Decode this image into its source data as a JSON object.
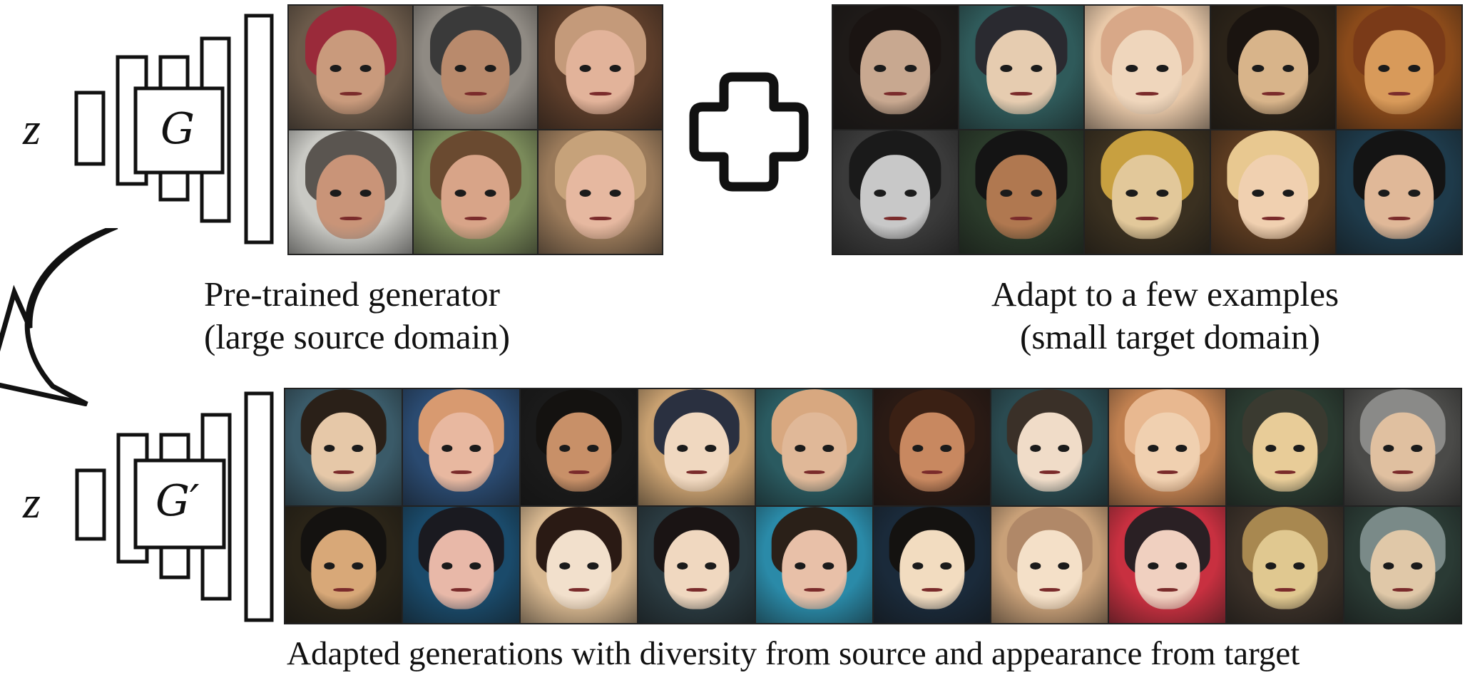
{
  "figure": {
    "source_generator": {
      "z_label": "z",
      "g_label": "G"
    },
    "adapted_generator": {
      "z_label": "z",
      "g_label": "G′"
    },
    "plus_icon": "plus-icon",
    "arrow_icon": "curved-arrow-icon",
    "captions": {
      "pretrained_line1": "Pre-trained generator",
      "pretrained_line2": "(large source domain)",
      "adapt_line1": "Adapt to a few examples",
      "adapt_line2": "(small target domain)",
      "adapted": "Adapted generations with diversity from source and appearance from target"
    }
  },
  "source_faces": [
    {
      "bg": "#6b5a4a",
      "skin": "#c99a7c",
      "hair": "#9a2a3a"
    },
    {
      "bg": "#8f8a83",
      "skin": "#b98a6c",
      "hair": "#3a3a3a"
    },
    {
      "bg": "#5c3d2a",
      "skin": "#e2b39a",
      "hair": "#c49a7a"
    },
    {
      "bg": "#c9c9c4",
      "skin": "#c99478",
      "hair": "#5a5550"
    },
    {
      "bg": "#7a8a5a",
      "skin": "#d8a488",
      "hair": "#6a4a30"
    },
    {
      "bg": "#9a7a5a",
      "skin": "#e6b8a0",
      "hair": "#c6a27a"
    }
  ],
  "target_faces": [
    {
      "bg": "#1e1a18",
      "skin": "#c8a890",
      "hair": "#1a1412"
    },
    {
      "bg": "#2f5a5a",
      "skin": "#e6ccb0",
      "hair": "#2a2a30"
    },
    {
      "bg": "#e8c8a8",
      "skin": "#efd6bc",
      "hair": "#d8a888"
    },
    {
      "bg": "#2a2218",
      "skin": "#d8b48a",
      "hair": "#1a1410"
    },
    {
      "bg": "#8a4a1a",
      "skin": "#d89a5a",
      "hair": "#7a3a18"
    },
    {
      "bg": "#3a3a3a",
      "skin": "#c8c8c8",
      "hair": "#1a1a1a"
    },
    {
      "bg": "#2a3a2a",
      "skin": "#b07850",
      "hair": "#141414"
    },
    {
      "bg": "#3a3020",
      "skin": "#e2c89a",
      "hair": "#c8a040"
    },
    {
      "bg": "#5a3a20",
      "skin": "#f0d0b0",
      "hair": "#e8c890"
    },
    {
      "bg": "#1e3a4a",
      "skin": "#e0b898",
      "hair": "#141414"
    }
  ],
  "adapted_faces": [
    {
      "bg": "#3a5a68",
      "skin": "#e6c8a8",
      "hair": "#2a2018"
    },
    {
      "bg": "#2a4a70",
      "skin": "#e8b8a0",
      "hair": "#d89a70"
    },
    {
      "bg": "#1a1a1a",
      "skin": "#c89068",
      "hair": "#141210"
    },
    {
      "bg": "#c8a070",
      "skin": "#f0d8c0",
      "hair": "#2a3040"
    },
    {
      "bg": "#2a5a60",
      "skin": "#e0b898",
      "hair": "#d8a880"
    },
    {
      "bg": "#2a1a14",
      "skin": "#c88860",
      "hair": "#3a2014"
    },
    {
      "bg": "#2a4a50",
      "skin": "#f0dcc8",
      "hair": "#3a3028"
    },
    {
      "bg": "#c08050",
      "skin": "#f0d0b0",
      "hair": "#e8b890"
    },
    {
      "bg": "#2a3a30",
      "skin": "#e8cc98",
      "hair": "#3a3a30"
    },
    {
      "bg": "#4a4a48",
      "skin": "#e0c0a0",
      "hair": "#8a8a88"
    },
    {
      "bg": "#2a2418",
      "skin": "#d8a878",
      "hair": "#141210"
    },
    {
      "bg": "#1a4a6a",
      "skin": "#e8b8a8",
      "hair": "#1a1a20"
    },
    {
      "bg": "#d8b890",
      "skin": "#f2e0cc",
      "hair": "#2a1a14"
    },
    {
      "bg": "#2a3a40",
      "skin": "#f0d8c0",
      "hair": "#1a1414"
    },
    {
      "bg": "#2a8aa8",
      "skin": "#e8c0a8",
      "hair": "#2a2018"
    },
    {
      "bg": "#1a2a3a",
      "skin": "#f2dcc0",
      "hair": "#141210"
    },
    {
      "bg": "#c8a078",
      "skin": "#f4e0c8",
      "hair": "#b08868"
    },
    {
      "bg": "#c83040",
      "skin": "#f0d0c0",
      "hair": "#2a2024"
    },
    {
      "bg": "#3a3028",
      "skin": "#e0c890",
      "hair": "#a88850"
    },
    {
      "bg": "#2a3a34",
      "skin": "#e0c8a8",
      "hair": "#7a8a88"
    }
  ]
}
